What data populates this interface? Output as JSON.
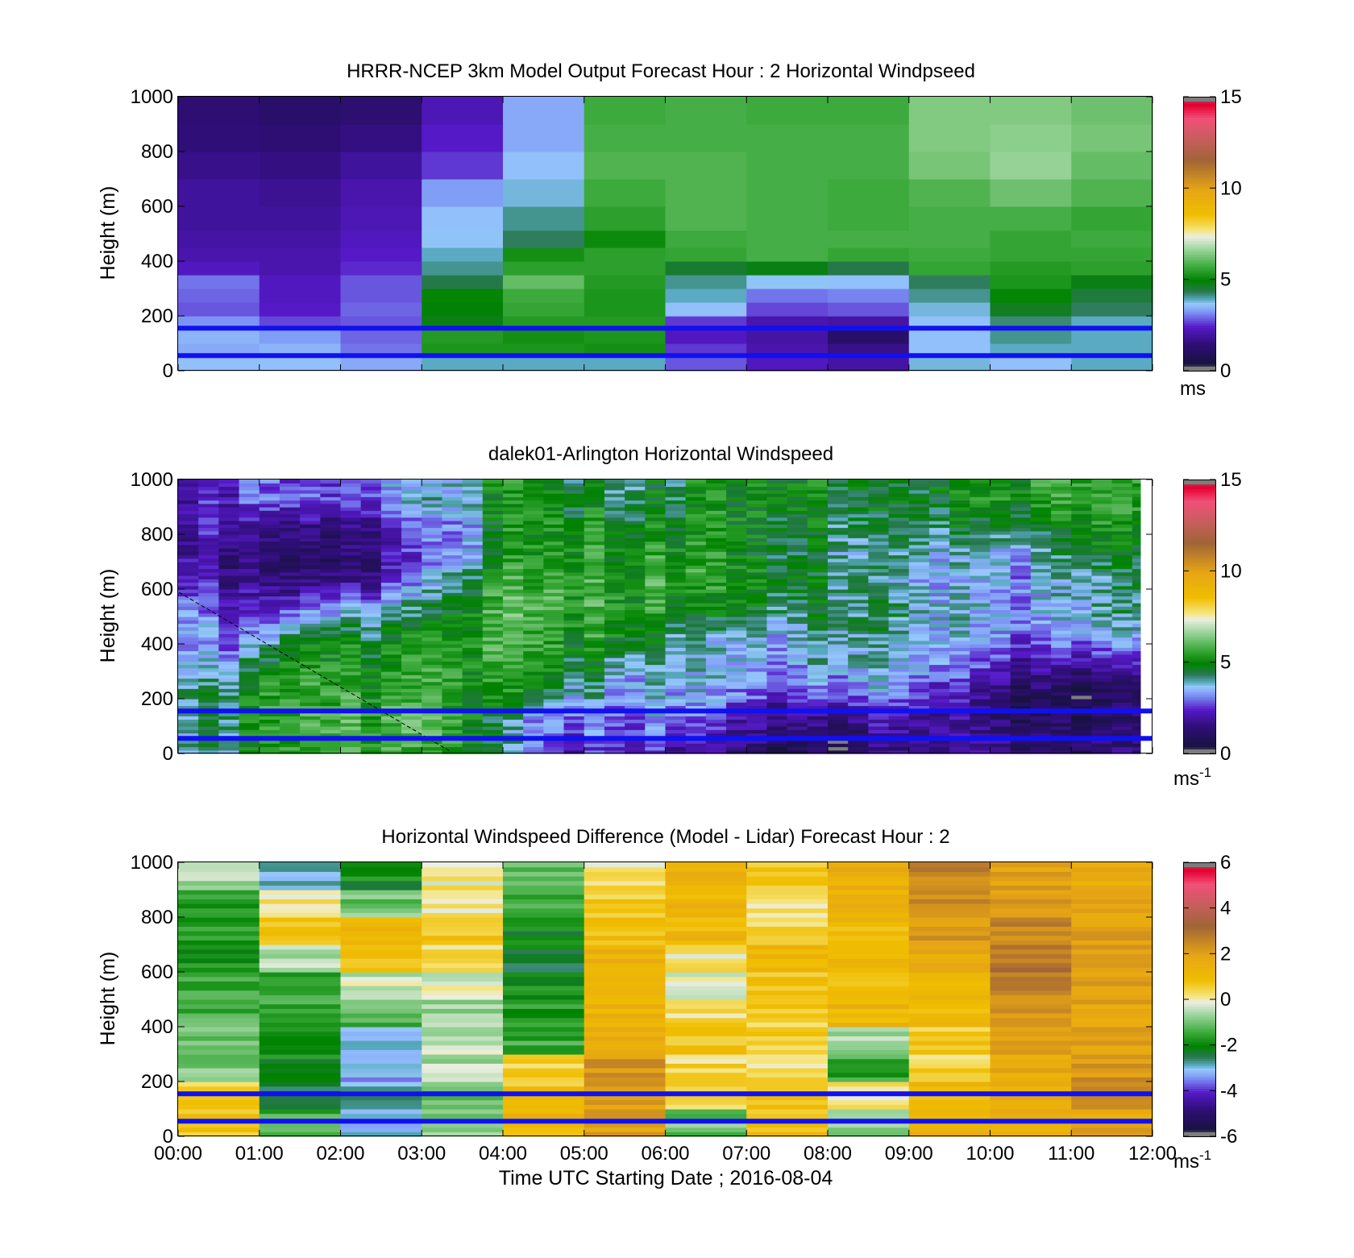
{
  "figure": {
    "xlabel": "Time UTC  Starting Date ; 2016-08-04",
    "x_ticks": [
      "00:00",
      "01:00",
      "02:00",
      "03:00",
      "04:00",
      "05:00",
      "06:00",
      "07:00",
      "08:00",
      "09:00",
      "10:00",
      "11:00",
      "12:00"
    ]
  },
  "colors": {
    "overlay_line": "#1010f0",
    "nan_gray": "#a6a6a6"
  },
  "chart_data": [
    {
      "type": "heatmap",
      "id": "model",
      "title": "HRRR-NCEP 3km Model Output   Forecast Hour : 2 Horizontal Windpseed",
      "ylabel": "Height (m)",
      "ylim": [
        0,
        1000
      ],
      "y_ticks": [
        0,
        200,
        400,
        600,
        800,
        1000
      ],
      "x_range_hours": [
        0,
        12
      ],
      "colorbar": {
        "range": [
          0,
          15
        ],
        "ticks": [
          0,
          5,
          10,
          15
        ],
        "unit": "ms",
        "unit_sup": ""
      },
      "overlay_lines_m": [
        55,
        155
      ],
      "columns_hours_start": [
        0,
        1,
        2,
        3,
        4,
        5,
        6,
        7,
        8,
        9,
        10,
        11
      ],
      "levels_m": [
        25,
        75,
        125,
        175,
        225,
        275,
        325,
        375,
        425,
        475,
        550,
        650,
        750,
        850,
        950
      ],
      "values": [
        [
          3.6,
          3.6,
          3.4,
          3.9,
          3.9,
          3.9,
          2.8,
          2.3,
          2.0,
          3.8,
          3.6,
          3.9
        ],
        [
          3.4,
          3.5,
          3.0,
          5.3,
          5.3,
          5.2,
          2.6,
          2.1,
          1.7,
          3.6,
          3.9,
          3.9
        ],
        [
          3.5,
          3.3,
          2.9,
          5.4,
          5.2,
          5.3,
          2.3,
          2.0,
          1.2,
          3.6,
          4.1,
          3.9
        ],
        [
          3.2,
          2.7,
          2.8,
          4.8,
          5.4,
          5.4,
          2.6,
          2.1,
          2.0,
          3.6,
          4.2,
          3.9
        ],
        [
          2.8,
          2.4,
          2.9,
          4.9,
          5.6,
          5.3,
          3.6,
          2.7,
          2.8,
          3.8,
          4.7,
          4.3
        ],
        [
          2.9,
          2.3,
          2.8,
          5.0,
          5.7,
          5.3,
          3.9,
          3.0,
          3.1,
          4.1,
          5.0,
          4.5
        ],
        [
          3.0,
          2.3,
          2.8,
          4.4,
          6.1,
          5.4,
          4.1,
          3.7,
          3.6,
          4.3,
          5.3,
          4.8
        ],
        [
          2.3,
          2.1,
          2.5,
          4.1,
          5.5,
          5.5,
          4.6,
          4.8,
          4.4,
          5.6,
          5.4,
          5.5
        ],
        [
          2.1,
          2.1,
          2.4,
          3.9,
          5.2,
          5.5,
          5.6,
          5.8,
          5.6,
          5.7,
          5.6,
          5.6
        ],
        [
          2.0,
          2.0,
          2.3,
          3.7,
          4.3,
          5.1,
          5.7,
          5.8,
          5.8,
          5.8,
          5.6,
          5.7
        ],
        [
          1.9,
          1.9,
          2.2,
          3.6,
          4.1,
          5.5,
          5.9,
          5.8,
          5.7,
          5.8,
          5.8,
          5.6
        ],
        [
          1.9,
          1.8,
          2.1,
          3.3,
          3.8,
          5.7,
          5.9,
          5.8,
          5.7,
          5.9,
          6.2,
          5.9
        ],
        [
          1.7,
          1.6,
          1.9,
          2.6,
          3.6,
          5.9,
          5.9,
          5.8,
          5.8,
          6.3,
          6.6,
          6.1
        ],
        [
          1.5,
          1.4,
          1.6,
          2.4,
          3.4,
          5.8,
          5.8,
          5.8,
          5.8,
          6.4,
          6.5,
          6.3
        ],
        [
          1.4,
          1.2,
          1.3,
          2.2,
          3.4,
          5.7,
          5.8,
          5.7,
          5.7,
          6.4,
          6.4,
          6.2
        ]
      ]
    },
    {
      "type": "heatmap",
      "id": "lidar",
      "title": "dalek01-Arlington  Horizontal Windspeed",
      "ylabel": "Height (m)",
      "ylim": [
        0,
        1000
      ],
      "y_ticks": [
        0,
        200,
        400,
        600,
        800,
        1000
      ],
      "x_range_hours": [
        0,
        12
      ],
      "colorbar": {
        "range": [
          0,
          15
        ],
        "ticks": [
          0,
          5,
          10,
          15
        ],
        "unit": "ms",
        "unit_sup": "-1"
      },
      "overlay_lines_m": [
        55,
        155
      ],
      "data_x_end_hours": 11.85,
      "keyframes": [
        {
          "t": 0.0,
          "w": [
            3.6,
            3.4,
            4.1,
            3.2,
            3.1,
            3.3,
            2.3,
            1.8,
            1.6,
            1.7
          ]
        },
        {
          "t": 0.5,
          "w": [
            4.0,
            4.4,
            4.2,
            3.4,
            3.0,
            2.5,
            2.0,
            1.8,
            2.2,
            2.4
          ]
        },
        {
          "t": 1.0,
          "w": [
            4.8,
            5.0,
            5.0,
            4.4,
            3.0,
            2.0,
            1.2,
            0.9,
            1.5,
            2.5
          ]
        },
        {
          "t": 1.5,
          "w": [
            5.3,
            5.6,
            5.3,
            5.0,
            4.3,
            2.8,
            1.2,
            0.7,
            1.2,
            2.5
          ]
        },
        {
          "t": 2.0,
          "w": [
            5.6,
            5.7,
            5.4,
            5.2,
            4.8,
            3.0,
            1.5,
            0.9,
            1.3,
            2.5
          ]
        },
        {
          "t": 2.5,
          "w": [
            5.4,
            5.6,
            5.3,
            5.0,
            4.5,
            3.6,
            2.2,
            1.7,
            2.0,
            3.0
          ]
        },
        {
          "t": 3.0,
          "w": [
            5.5,
            5.7,
            5.5,
            5.3,
            5.0,
            4.0,
            3.0,
            2.4,
            2.8,
            3.6
          ]
        },
        {
          "t": 3.5,
          "w": [
            5.6,
            5.8,
            5.6,
            5.5,
            5.4,
            5.2,
            4.7,
            3.4,
            3.2,
            3.8
          ]
        },
        {
          "t": 4.0,
          "w": [
            4.2,
            3.7,
            5.1,
            5.6,
            5.9,
            5.8,
            5.6,
            5.2,
            5.0,
            5.2
          ]
        },
        {
          "t": 4.5,
          "w": [
            2.6,
            3.3,
            4.6,
            5.3,
            5.7,
            6.0,
            5.7,
            5.4,
            5.2,
            5.2
          ]
        },
        {
          "t": 5.0,
          "w": [
            2.3,
            3.2,
            4.0,
            4.6,
            5.3,
            5.6,
            5.6,
            5.4,
            5.1,
            4.7
          ]
        },
        {
          "t": 5.5,
          "w": [
            2.7,
            3.0,
            3.5,
            4.1,
            5.3,
            5.6,
            5.5,
            5.3,
            5.0,
            4.6
          ]
        },
        {
          "t": 6.0,
          "w": [
            2.4,
            3.2,
            3.8,
            3.8,
            4.4,
            5.2,
            5.6,
            5.4,
            5.0,
            4.5
          ]
        },
        {
          "t": 6.5,
          "w": [
            1.9,
            2.7,
            3.4,
            3.6,
            3.7,
            4.8,
            5.5,
            5.5,
            5.3,
            5.1
          ]
        },
        {
          "t": 7.0,
          "w": [
            1.2,
            1.8,
            2.9,
            3.3,
            3.4,
            4.6,
            5.1,
            4.7,
            4.8,
            4.8
          ]
        },
        {
          "t": 7.5,
          "w": [
            0.9,
            1.5,
            2.4,
            3.0,
            3.4,
            4.2,
            4.6,
            4.5,
            4.6,
            4.9
          ]
        },
        {
          "t": 8.0,
          "w": [
            0.7,
            1.4,
            2.9,
            3.8,
            4.2,
            4.4,
            4.4,
            4.3,
            4.6,
            4.8
          ]
        },
        {
          "t": 8.5,
          "w": [
            1.3,
            2.0,
            3.2,
            3.8,
            4.2,
            4.4,
            4.1,
            4.0,
            4.3,
            4.7
          ]
        },
        {
          "t": 9.0,
          "w": [
            1.8,
            2.4,
            3.4,
            3.8,
            4.0,
            4.3,
            3.9,
            4.1,
            4.5,
            4.8
          ]
        },
        {
          "t": 9.5,
          "w": [
            2.1,
            1.8,
            2.3,
            3.2,
            3.6,
            3.8,
            3.5,
            3.7,
            4.5,
            5.0
          ]
        },
        {
          "t": 10.0,
          "w": [
            1.8,
            1.3,
            1.5,
            2.6,
            3.2,
            3.5,
            3.3,
            3.4,
            4.5,
            5.2
          ]
        },
        {
          "t": 10.5,
          "w": [
            1.2,
            0.9,
            1.1,
            1.9,
            3.0,
            3.4,
            3.2,
            3.6,
            4.5,
            5.3
          ]
        },
        {
          "t": 11.0,
          "w": [
            0.9,
            0.6,
            0.6,
            1.5,
            3.0,
            3.4,
            3.5,
            4.1,
            4.8,
            5.4
          ]
        },
        {
          "t": 11.5,
          "w": [
            1.1,
            0.6,
            0.6,
            1.7,
            3.3,
            3.9,
            3.9,
            4.4,
            5.0,
            5.5
          ]
        },
        {
          "t": 11.85,
          "w": [
            1.5,
            1.3,
            1.4,
            2.3,
            3.6,
            4.2,
            4.4,
            4.8,
            5.2,
            5.6
          ]
        }
      ],
      "keyframe_levels_m": [
        25,
        125,
        225,
        325,
        425,
        525,
        625,
        725,
        825,
        925
      ]
    },
    {
      "type": "heatmap",
      "id": "difference",
      "title": "Horizontal Windspeed Difference (Model - Lidar) Forecast Hour : 2",
      "ylabel": "Height (m)",
      "ylim": [
        0,
        1000
      ],
      "y_ticks": [
        0,
        200,
        400,
        600,
        800,
        1000
      ],
      "x_range_hours": [
        0,
        12
      ],
      "colorbar": {
        "range": [
          -6,
          6
        ],
        "ticks": [
          -6,
          -4,
          -2,
          0,
          2,
          4,
          6
        ],
        "unit": "ms",
        "unit_sup": "-1"
      },
      "overlay_lines_m": [
        55,
        155
      ],
      "columns_hours_start": [
        0,
        1,
        2,
        3,
        4,
        5,
        6,
        7,
        8,
        9,
        10,
        11
      ],
      "levels_m": [
        50,
        150,
        250,
        350,
        450,
        550,
        650,
        750,
        850,
        950
      ],
      "values": [
        [
          0.7,
          -1.5,
          -3.0,
          -1.0,
          1.2,
          2.0,
          -1.0,
          0.8,
          -1.0,
          1.5,
          1.5,
          1.8
        ],
        [
          0.6,
          -2.5,
          -2.8,
          -1.0,
          0.8,
          2.2,
          0.3,
          0.6,
          0.3,
          1.2,
          1.5,
          2.8
        ],
        [
          -1.0,
          -2.0,
          -3.3,
          -0.5,
          0.6,
          2.2,
          0.4,
          0.2,
          -1.5,
          0.5,
          1.7,
          2.3
        ],
        [
          -1.2,
          -1.7,
          -3.0,
          -0.4,
          -1.5,
          1.4,
          0.8,
          0.5,
          -0.5,
          0.6,
          2.0,
          1.9
        ],
        [
          -1.4,
          -1.5,
          -1.2,
          -0.7,
          -1.7,
          1.3,
          0.4,
          0.6,
          1.2,
          1.1,
          2.1,
          1.9
        ],
        [
          -1.6,
          -1.4,
          -0.3,
          -0.3,
          -1.8,
          1.3,
          -0.3,
          0.8,
          1.0,
          1.3,
          2.6,
          2.1
        ],
        [
          -1.8,
          -0.6,
          0.8,
          0.3,
          -2.2,
          1.3,
          0.2,
          1.1,
          1.3,
          1.7,
          2.9,
          2.2
        ],
        [
          -1.7,
          0.9,
          1.1,
          0.7,
          -2.0,
          1.0,
          1.1,
          0.3,
          1.1,
          2.1,
          2.5,
          2.0
        ],
        [
          -1.6,
          0.2,
          -1.0,
          0.2,
          -1.5,
          0.5,
          1.2,
          0.1,
          1.2,
          2.6,
          2.0,
          1.8
        ],
        [
          -0.6,
          -2.8,
          -2.0,
          0.1,
          -1.3,
          0.2,
          1.2,
          0.8,
          1.5,
          2.6,
          1.9,
          1.6
        ]
      ]
    }
  ]
}
